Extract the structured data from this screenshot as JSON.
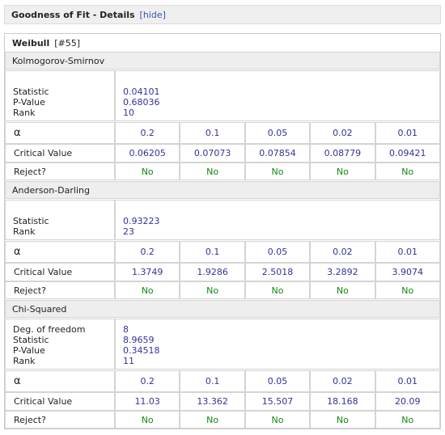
{
  "header": {
    "title": "Goodness of Fit - Details",
    "hide": "[hide]"
  },
  "distribution": {
    "name": "Weibull",
    "id": "[#55]"
  },
  "tests": [
    {
      "name": "Kolmogorov-Smirnov",
      "stats": [
        {
          "label": "Statistic",
          "value": 0.04101
        },
        {
          "label": "P-Value",
          "value": 0.68036
        },
        {
          "label": "Rank",
          "value": 10
        }
      ],
      "alpha_label": "α",
      "alpha": [
        0.2,
        0.1,
        0.05,
        0.02,
        0.01
      ],
      "critical_label": "Critical Value",
      "critical": [
        0.06205,
        0.07073,
        0.07854,
        0.08779,
        0.09421
      ],
      "reject_label": "Reject?",
      "reject": [
        "No",
        "No",
        "No",
        "No",
        "No"
      ]
    },
    {
      "name": "Anderson-Darling",
      "stats": [
        {
          "label": "Statistic",
          "value": 0.93223
        },
        {
          "label": "Rank",
          "value": 23
        }
      ],
      "alpha_label": "α",
      "alpha": [
        0.2,
        0.1,
        0.05,
        0.02,
        0.01
      ],
      "critical_label": "Critical Value",
      "critical": [
        1.3749,
        1.9286,
        2.5018,
        3.2892,
        3.9074
      ],
      "reject_label": "Reject?",
      "reject": [
        "No",
        "No",
        "No",
        "No",
        "No"
      ]
    },
    {
      "name": "Chi-Squared",
      "stats": [
        {
          "label": "Deg. of freedom",
          "value": 8
        },
        {
          "label": "Statistic",
          "value": 8.9659
        },
        {
          "label": "P-Value",
          "value": 0.34518
        },
        {
          "label": "Rank",
          "value": 11
        }
      ],
      "alpha_label": "α",
      "alpha": [
        0.2,
        0.1,
        0.05,
        0.02,
        0.01
      ],
      "critical_label": "Critical Value",
      "critical": [
        11.03,
        13.362,
        15.507,
        18.168,
        20.09
      ],
      "reject_label": "Reject?",
      "reject": [
        "No",
        "No",
        "No",
        "No",
        "No"
      ]
    }
  ]
}
